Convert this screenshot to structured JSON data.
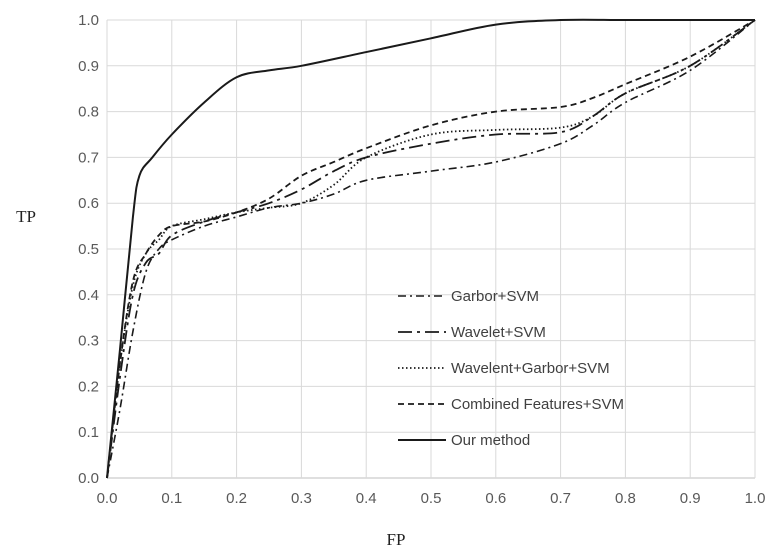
{
  "chart_data": {
    "type": "line",
    "xlabel": "FP",
    "ylabel": "TP",
    "xlim": [
      0,
      1
    ],
    "ylim": [
      0,
      1
    ],
    "x_ticks": [
      "0.0",
      "0.1",
      "0.2",
      "0.3",
      "0.4",
      "0.5",
      "0.6",
      "0.7",
      "0.8",
      "0.9",
      "1.0"
    ],
    "y_ticks": [
      "0.0",
      "0.1",
      "0.2",
      "0.3",
      "0.4",
      "0.5",
      "0.6",
      "0.7",
      "0.8",
      "0.9",
      "1.0"
    ],
    "grid": true,
    "legend_position": "lower-right",
    "series": [
      {
        "name": "Garbor+SVM",
        "line_style": "dash-dot",
        "x": [
          0.0,
          0.02,
          0.04,
          0.06,
          0.08,
          0.1,
          0.15,
          0.2,
          0.25,
          0.3,
          0.35,
          0.4,
          0.5,
          0.6,
          0.7,
          0.75,
          0.8,
          0.9,
          1.0
        ],
        "y": [
          0.0,
          0.15,
          0.32,
          0.45,
          0.5,
          0.52,
          0.55,
          0.57,
          0.59,
          0.6,
          0.62,
          0.65,
          0.67,
          0.69,
          0.73,
          0.77,
          0.82,
          0.89,
          1.0
        ]
      },
      {
        "name": "Wavelet+SVM",
        "line_style": "long-dash-dot",
        "x": [
          0.0,
          0.02,
          0.04,
          0.06,
          0.08,
          0.1,
          0.15,
          0.2,
          0.25,
          0.3,
          0.35,
          0.4,
          0.5,
          0.6,
          0.7,
          0.75,
          0.8,
          0.9,
          1.0
        ],
        "y": [
          0.0,
          0.22,
          0.4,
          0.47,
          0.49,
          0.53,
          0.56,
          0.58,
          0.6,
          0.63,
          0.67,
          0.7,
          0.73,
          0.75,
          0.755,
          0.79,
          0.84,
          0.9,
          1.0
        ]
      },
      {
        "name": "Wavelent+Garbor+SVM",
        "line_style": "dotted",
        "x": [
          0.0,
          0.02,
          0.04,
          0.06,
          0.08,
          0.1,
          0.15,
          0.2,
          0.25,
          0.3,
          0.35,
          0.4,
          0.5,
          0.6,
          0.7,
          0.75,
          0.8,
          0.9,
          1.0
        ],
        "y": [
          0.0,
          0.25,
          0.42,
          0.49,
          0.52,
          0.55,
          0.565,
          0.58,
          0.59,
          0.6,
          0.64,
          0.7,
          0.75,
          0.76,
          0.765,
          0.79,
          0.84,
          0.9,
          1.0
        ]
      },
      {
        "name": "Combined Features+SVM",
        "line_style": "dashed",
        "x": [
          0.0,
          0.02,
          0.04,
          0.06,
          0.08,
          0.1,
          0.15,
          0.2,
          0.25,
          0.3,
          0.35,
          0.4,
          0.5,
          0.6,
          0.7,
          0.75,
          0.8,
          0.9,
          1.0
        ],
        "y": [
          0.0,
          0.25,
          0.43,
          0.49,
          0.53,
          0.55,
          0.56,
          0.58,
          0.61,
          0.66,
          0.69,
          0.72,
          0.77,
          0.8,
          0.81,
          0.83,
          0.86,
          0.92,
          1.0
        ]
      },
      {
        "name": "Our method",
        "line_style": "solid",
        "x": [
          0.0,
          0.02,
          0.04,
          0.05,
          0.07,
          0.1,
          0.15,
          0.2,
          0.25,
          0.3,
          0.4,
          0.5,
          0.6,
          0.7,
          0.8,
          0.9,
          1.0
        ],
        "y": [
          0.0,
          0.28,
          0.57,
          0.66,
          0.7,
          0.75,
          0.82,
          0.875,
          0.89,
          0.9,
          0.93,
          0.96,
          0.99,
          1.0,
          1.0,
          1.0,
          1.0
        ]
      }
    ]
  }
}
